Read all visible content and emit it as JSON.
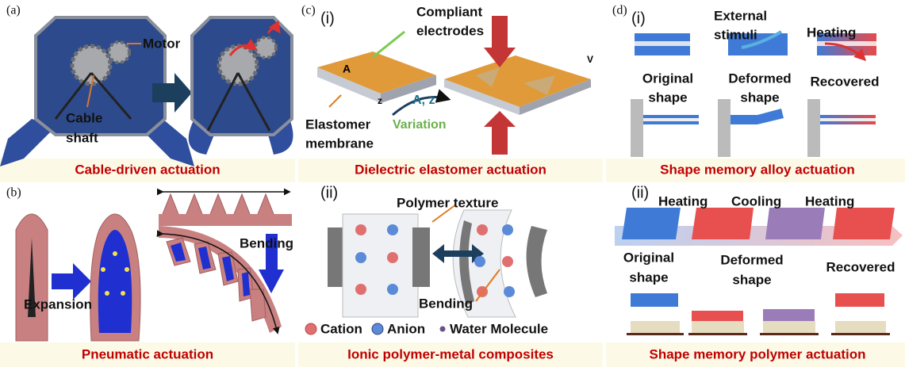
{
  "panel_a": {
    "label": "(a)",
    "motor": "Motor",
    "cable_shaft": [
      "Cable",
      "shaft"
    ],
    "caption": "Cable-driven actuation"
  },
  "panel_b": {
    "label": "(b)",
    "expansion": "Expansion",
    "bending": "Bending",
    "caption": "Pneumatic actuation"
  },
  "panel_c": {
    "label": "(c)",
    "part_i": {
      "label": "(i)",
      "compliant_electrodes": [
        "Compliant",
        "electrodes"
      ],
      "area": "A",
      "voltage": "V",
      "thickness": "z",
      "variables": "A, z",
      "variation": "Variation",
      "elastomer_membrane": [
        "Elastomer",
        "membrane"
      ],
      "caption": "Dielectric elastomer actuation"
    },
    "part_ii": {
      "label": "(ii)",
      "polymer_texture": "Polymer texture",
      "bending": "Bending",
      "legend": [
        "Cation",
        "Anion",
        "Water Molecule"
      ],
      "caption": "Ionic polymer-metal composites"
    }
  },
  "panel_d": {
    "label": "(d)",
    "part_i": {
      "label": "(i)",
      "external_stimuli": [
        "External",
        "stimuli"
      ],
      "heating": "Heating",
      "original_shape": [
        "Original",
        "shape"
      ],
      "deformed_shape": [
        "Deformed",
        "shape"
      ],
      "recovered": "Recovered",
      "caption": "Shape memory alloy actuation"
    },
    "part_ii": {
      "label": "(ii)",
      "steps": [
        "Heating",
        "Cooling",
        "Heating"
      ],
      "original_shape": [
        "Original",
        "shape"
      ],
      "deformed_shape": [
        "Deformed",
        "shape"
      ],
      "recovered": "Recovered",
      "caption": "Shape memory polymer actuation"
    }
  }
}
